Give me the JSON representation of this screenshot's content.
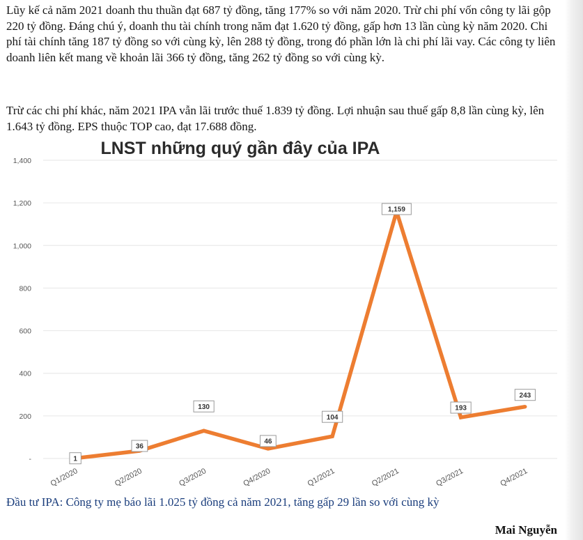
{
  "article": {
    "paragraph1": "Lũy kế cả năm 2021 doanh thu thuần đạt 687 tỷ đồng, tăng 177% so với năm 2020. Trừ chi phí vốn công ty lãi gộp 220 tỷ đồng. Đáng chú ý, doanh thu tài chính trong năm đạt 1.620 tỷ đồng, gấp hơn 13 lần cùng kỳ năm 2020. Chi phí tài chính tăng 187 tỷ đồng so với cùng kỳ, lên 288 tỷ đồng, trong đó phần lớn là chi phí lãi vay. Các công ty liên doanh liên kết mang về khoản lãi 366 tỷ đồng, tăng 262 tỷ đồng so với cùng kỳ.",
    "paragraph2": "Trừ các chi phí khác, năm 2021 IPA vẫn lãi trước thuế 1.839 tỷ đồng. Lợi nhuận sau thuế gấp 8,8 lần cùng kỳ, lên 1.643 tỷ đồng. EPS thuộc TOP cao, đạt 17.688 đồng.",
    "caption": "Đầu tư IPA: Công ty mẹ báo lãi 1.025 tỷ đồng cả năm 2021, tăng gấp 29 lần so với cùng kỳ",
    "author": "Mai Nguyễn"
  },
  "chart_data": {
    "type": "line",
    "title": "LNST những quý gần đây của IPA",
    "categories": [
      "Q1/2020",
      "Q2/2020",
      "Q3/2020",
      "Q4/2020",
      "Q1/2021",
      "Q2/2021",
      "Q3/2021",
      "Q4/2021"
    ],
    "values": [
      1,
      36,
      130,
      46,
      104,
      1159,
      193,
      243
    ],
    "data_labels": [
      "1",
      "36",
      "130",
      "46",
      "104",
      "1,159",
      "193",
      "243"
    ],
    "ylim": [
      0,
      1400
    ],
    "yticks": [
      0,
      200,
      400,
      600,
      800,
      1000,
      1200,
      1400
    ],
    "ytick_labels": [
      "-",
      "200",
      "400",
      "600",
      "800",
      "1,000",
      "1,200",
      "1,400"
    ],
    "grid": true,
    "xlabel": "",
    "ylabel": "",
    "line_color": "#ED7D31",
    "grid_color": "#e6e6e6"
  }
}
